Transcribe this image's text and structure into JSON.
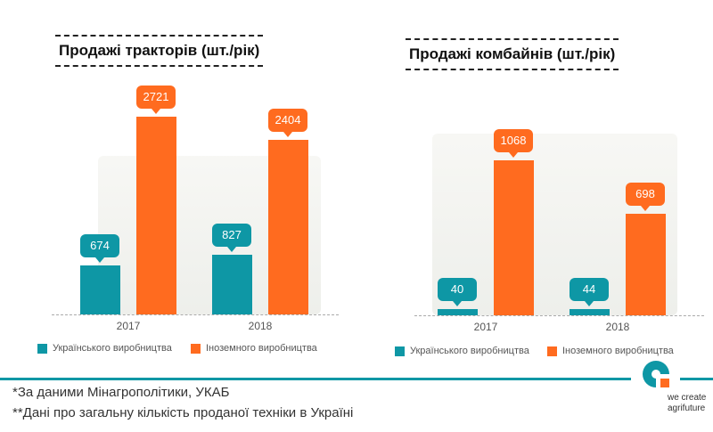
{
  "colors": {
    "ukrainian": "#0e97a5",
    "foreign": "#ff6b1f"
  },
  "chart_data": [
    {
      "type": "bar",
      "title": "Продажі тракторів (шт./рік)",
      "categories": [
        "2017",
        "2018"
      ],
      "series": [
        {
          "name": "Українського виробництва",
          "values": [
            674,
            827
          ]
        },
        {
          "name": "Іноземного виробництва",
          "values": [
            2721,
            2404
          ]
        }
      ],
      "legend": "bottom"
    },
    {
      "type": "bar",
      "title": "Продажі комбайнів (шт./рік)",
      "categories": [
        "2017",
        "2018"
      ],
      "series": [
        {
          "name": "Українського виробництва",
          "values": [
            40,
            44
          ]
        },
        {
          "name": "Іноземного виробництва",
          "values": [
            1068,
            698
          ]
        }
      ],
      "legend": "bottom"
    }
  ],
  "footer": {
    "note1": "*За даними Мінагрополітики, УКАБ",
    "note2": "**Дані про загальну кількість проданої техніки в Україні",
    "logo_text": "we create agrifuture"
  }
}
